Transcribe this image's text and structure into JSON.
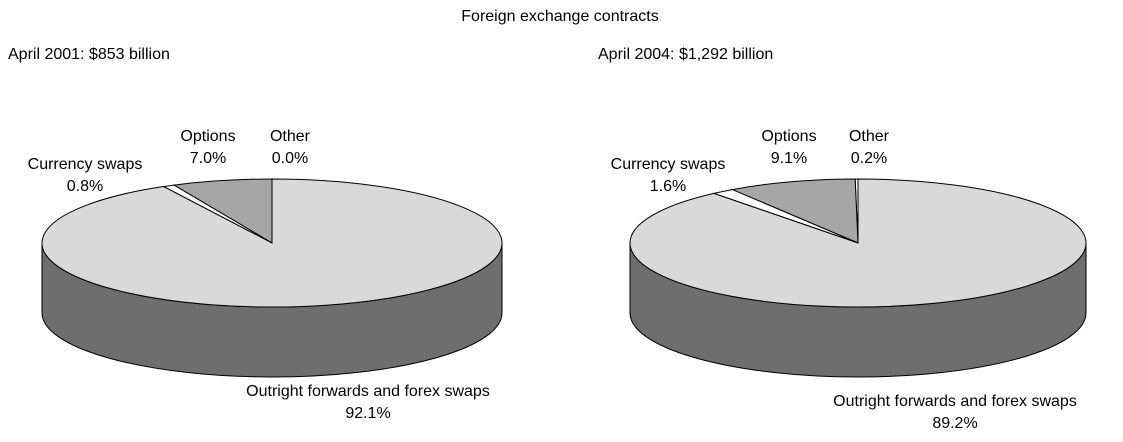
{
  "title": "Foreign exchange contracts",
  "chart_data": [
    {
      "type": "pie",
      "title": "April 2001: $853 billion",
      "categories": [
        "Other",
        "Options",
        "Currency swaps",
        "Outright forwards and forex swaps"
      ],
      "values": [
        0.0,
        7.0,
        0.8,
        92.1
      ],
      "value_labels": [
        "0.0%",
        "7.0%",
        "0.8%",
        "92.1%"
      ],
      "colors": [
        "#ffffff",
        "#a6a6a6",
        "#ffffff",
        "#d9d9d9"
      ]
    },
    {
      "type": "pie",
      "title": "April 2004: $1,292 billion",
      "categories": [
        "Other",
        "Options",
        "Currency swaps",
        "Outright forwards and forex swaps"
      ],
      "values": [
        0.2,
        9.1,
        1.6,
        89.2
      ],
      "value_labels": [
        "0.2%",
        "9.1%",
        "1.6%",
        "89.2%"
      ],
      "colors": [
        "#ffffff",
        "#a6a6a6",
        "#ffffff",
        "#d9d9d9"
      ]
    }
  ]
}
